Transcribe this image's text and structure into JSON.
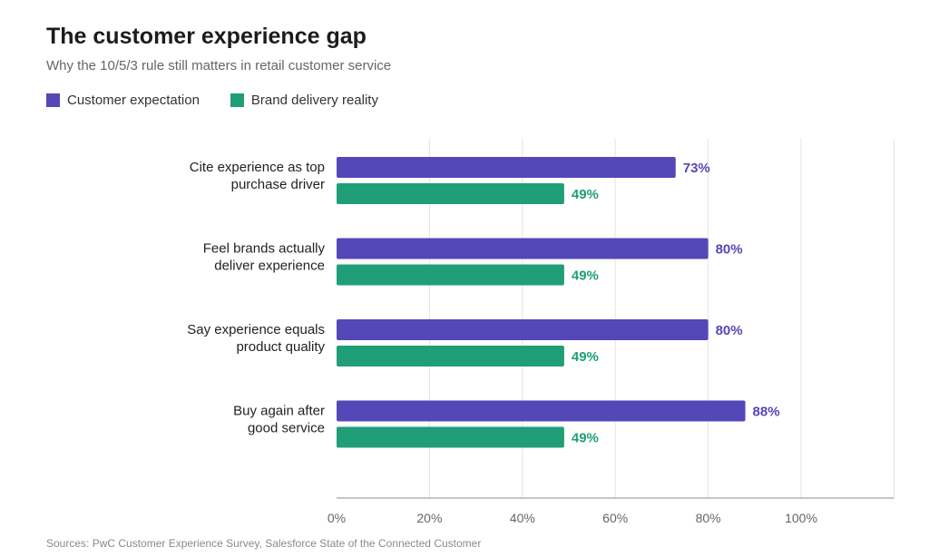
{
  "title": "The customer experience gap",
  "subtitle": "Why the 10/5/3 rule still matters in retail customer service",
  "source": "Sources: PwC Customer Experience Survey, Salesforce State of the Connected Customer",
  "colors": {
    "expectation": "#5447b8",
    "reality": "#1f9e78"
  },
  "chart_data": {
    "type": "bar",
    "orientation": "horizontal",
    "categories": [
      [
        "Cite experience as top",
        "purchase driver"
      ],
      [
        "Feel brands actually",
        "deliver experience"
      ],
      [
        "Say experience equals",
        "product quality"
      ],
      [
        "Buy again after",
        "good service"
      ]
    ],
    "series": [
      {
        "name": "Customer expectation",
        "values": [
          73,
          80,
          80,
          88
        ],
        "labels": [
          "73%",
          "80%",
          "80%",
          "88%"
        ]
      },
      {
        "name": "Brand delivery reality",
        "values": [
          49,
          49,
          49,
          49
        ],
        "labels": [
          "49%",
          "49%",
          "49%",
          "49%"
        ]
      }
    ],
    "xticks": [
      "0%",
      "20%",
      "40%",
      "60%",
      "80%",
      "100%"
    ],
    "xtick_values": [
      0,
      20,
      40,
      60,
      80,
      100
    ],
    "xlim": [
      0,
      120
    ],
    "grid": true,
    "legend": "top-left"
  }
}
